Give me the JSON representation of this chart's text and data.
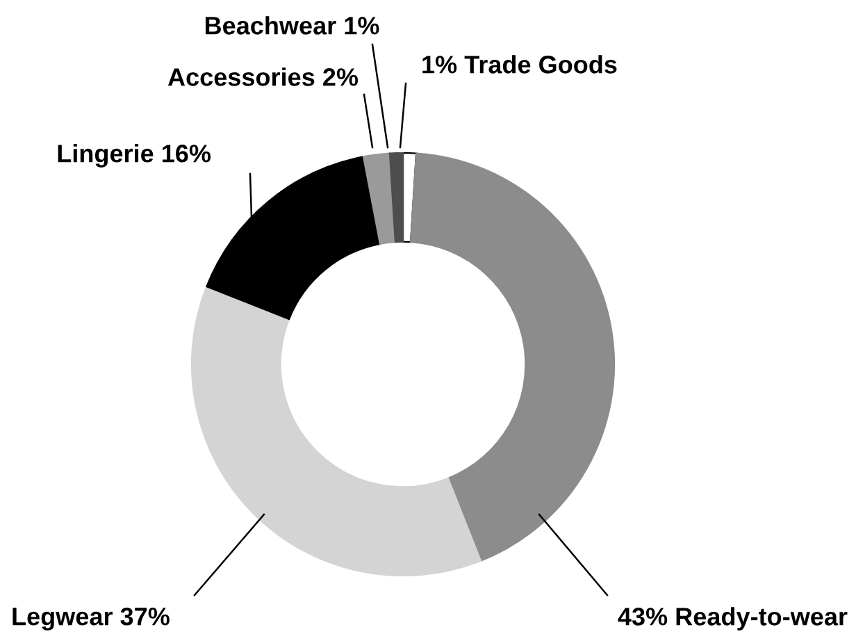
{
  "chart_data": {
    "type": "donut",
    "categories": [
      "Trade Goods",
      "Ready-to-wear",
      "Legwear",
      "Lingerie",
      "Accessories",
      "Beachwear"
    ],
    "values": [
      1,
      43,
      37,
      16,
      2,
      1
    ],
    "value_labels": [
      "1%",
      "43%",
      "37%",
      "16%",
      "2%",
      "1%"
    ],
    "colors": [
      "#ffffff",
      "#8c8c8c",
      "#d4d4d4",
      "#000000",
      "#9a9a9a",
      "#4d4d4d"
    ],
    "legend": false
  }
}
